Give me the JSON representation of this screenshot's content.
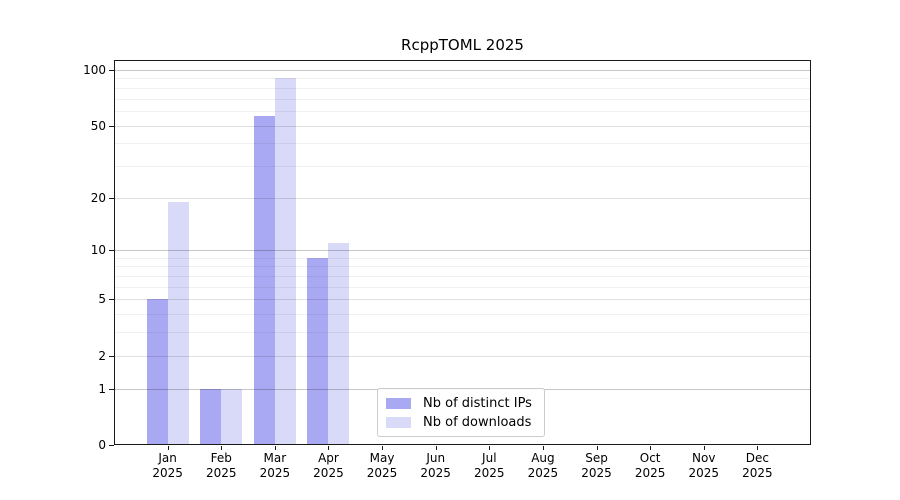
{
  "chart_data": {
    "type": "bar",
    "title": "RcppTOML 2025",
    "categories": [
      "Jan",
      "Feb",
      "Mar",
      "Apr",
      "May",
      "Jun",
      "Jul",
      "Aug",
      "Sep",
      "Oct",
      "Nov",
      "Dec"
    ],
    "x_year_label": "2025",
    "series": [
      {
        "name": "Nb of distinct IPs",
        "color": "#a9a9f3",
        "values": [
          5,
          1,
          56,
          9,
          0,
          0,
          0,
          0,
          0,
          0,
          0,
          0
        ]
      },
      {
        "name": "Nb of downloads",
        "color": "#d9d9f8",
        "values": [
          19,
          1,
          91,
          11,
          0,
          0,
          0,
          0,
          0,
          0,
          0,
          0
        ]
      }
    ],
    "xlabel": "",
    "ylabel": "",
    "yscale": "log1p",
    "ylim": [
      0,
      100
    ],
    "yticks": [
      0,
      1,
      2,
      5,
      10,
      20,
      50,
      100
    ],
    "decade_gridlines": [
      1,
      10,
      100
    ],
    "mid_gridlines": [
      2,
      5,
      20,
      50
    ],
    "minor_gridlines": [
      3,
      4,
      6,
      7,
      8,
      9,
      30,
      40,
      60,
      70,
      80,
      90
    ],
    "grid": true,
    "legend_position": "lower center"
  },
  "colors": {
    "frame": "#1a1a1a",
    "decade_grid": "rgba(0,0,0,0.22)",
    "mid_grid": "rgba(0,0,0,0.12)",
    "minor_grid": "rgba(0,0,0,0.06)",
    "text": "#000000",
    "legend_border": "#cccccc"
  }
}
